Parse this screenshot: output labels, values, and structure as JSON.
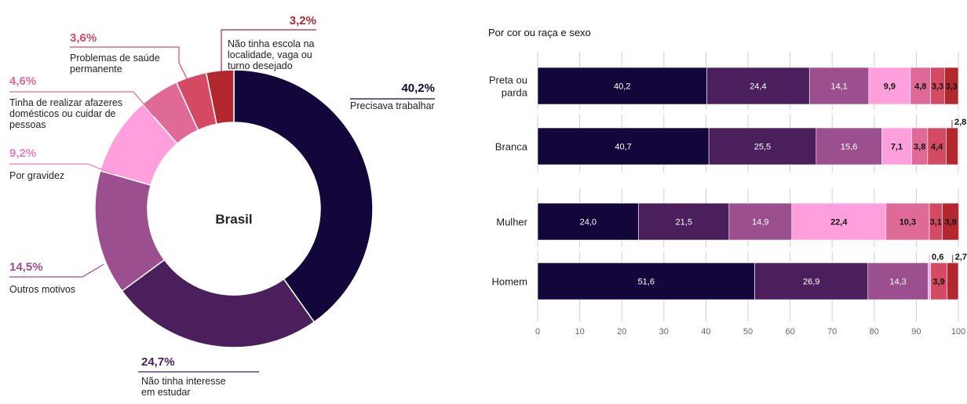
{
  "colors": {
    "c1": "#13063a",
    "c2": "#4b1e5c",
    "c3": "#9b4f8e",
    "c4": "#ffa0dc",
    "c5": "#e06a97",
    "c6": "#d44a63",
    "c7": "#b3282f",
    "grid": "#cfcfcf"
  },
  "chart_data": [
    {
      "type": "pie",
      "center_label": "Brasil",
      "slices": [
        {
          "pct_label": "40,2%",
          "value": 40.2,
          "desc": [
            "Precisava trabalhar"
          ],
          "color": "#13063a",
          "pct_color": "#13063a"
        },
        {
          "pct_label": "24,7%",
          "value": 24.7,
          "desc": [
            "Não tinha interesse",
            "em estudar"
          ],
          "color": "#4b1e5c",
          "pct_color": "#4b1e5c"
        },
        {
          "pct_label": "14,5%",
          "value": 14.5,
          "desc": [
            "Outros motivos"
          ],
          "color": "#9b4f8e",
          "pct_color": "#9b4f8e"
        },
        {
          "pct_label": "9,2%",
          "value": 9.2,
          "desc": [
            "Por gravidez"
          ],
          "color": "#ffa0dc",
          "pct_color": "#e57fc0"
        },
        {
          "pct_label": "4,6%",
          "value": 4.6,
          "desc": [
            "Tinha de realizar afazeres",
            "domésticos ou cuidar de",
            "pessoas"
          ],
          "color": "#e06a97",
          "pct_color": "#e06a97"
        },
        {
          "pct_label": "3,6%",
          "value": 3.6,
          "desc": [
            "Problemas de saúde",
            "permanente"
          ],
          "color": "#d44a63",
          "pct_color": "#d44a63"
        },
        {
          "pct_label": "3,2%",
          "value": 3.2,
          "desc": [
            "Não tinha escola na",
            "localidade, vaga ou",
            "turno desejado"
          ],
          "color": "#b3282f",
          "pct_color": "#b3282f"
        }
      ]
    },
    {
      "type": "bar",
      "orientation": "horizontal",
      "stacked": true,
      "title": "Por cor ou raça e sexo",
      "xlim": [
        0,
        100
      ],
      "ticks": [
        0,
        10,
        20,
        30,
        40,
        50,
        60,
        70,
        80,
        90,
        100
      ],
      "grid": true,
      "categories": [
        {
          "label": [
            "Preta ou",
            "parda"
          ],
          "values": [
            40.2,
            24.4,
            14.1,
            9.9,
            4.8,
            3.3,
            3.3
          ],
          "labels": [
            "40,2",
            "24,4",
            "14,1",
            "9,9",
            "4,8",
            "3,3",
            "3,3"
          ]
        },
        {
          "label": [
            "Branca"
          ],
          "values": [
            40.7,
            25.5,
            15.6,
            7.1,
            3.8,
            4.4,
            2.8
          ],
          "labels": [
            "40,7",
            "25,5",
            "15,6",
            "7,1",
            "3,8",
            "4,4",
            "2,8"
          ]
        },
        {
          "label": [
            "Mulher"
          ],
          "values": [
            24.0,
            21.5,
            14.9,
            22.4,
            10.3,
            3.1,
            3.9
          ],
          "labels": [
            "24,0",
            "21,5",
            "14,9",
            "22,4",
            "10,3",
            "3,1",
            "3,9"
          ]
        },
        {
          "label": [
            "Homem"
          ],
          "values": [
            51.6,
            26.9,
            14.3,
            0.6,
            0,
            3.9,
            2.7
          ],
          "labels": [
            "51,6",
            "26,9",
            "14,3",
            "0,6",
            "",
            "3,9",
            "2,7"
          ]
        }
      ]
    }
  ]
}
